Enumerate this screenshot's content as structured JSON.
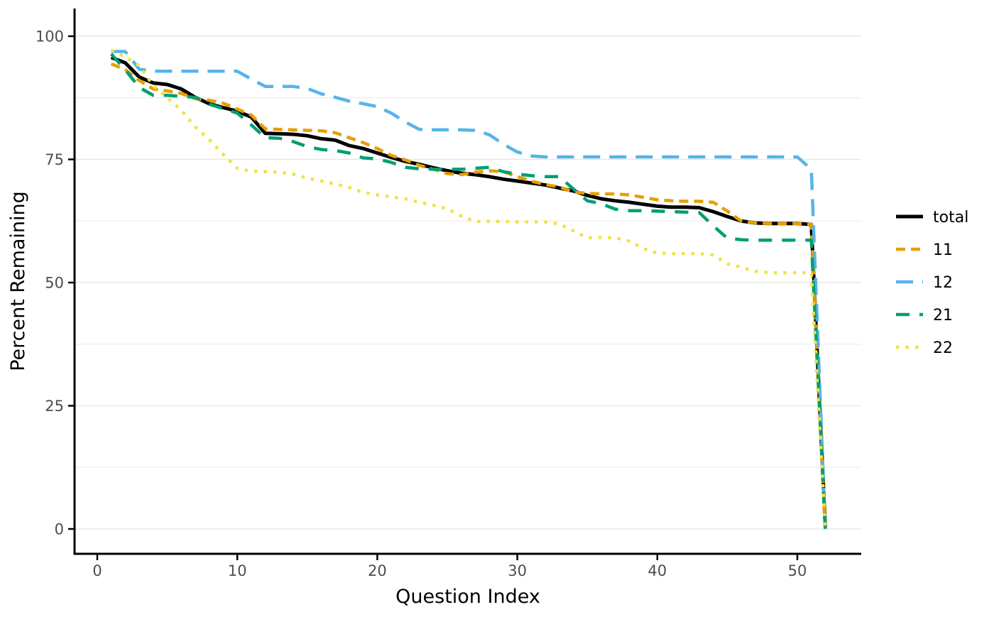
{
  "figure": {
    "background": "#ffffff"
  },
  "axes": {
    "axis_color": "#000000",
    "tick_label_color": "#4d4d4d",
    "title_color": "#000000",
    "grid_major_color": "#e7e7e7",
    "grid_minor_color": "#f0f0f0"
  },
  "legend": {
    "labels": [
      "total",
      "11",
      "12",
      "21",
      "22"
    ]
  },
  "chart_data": {
    "type": "line",
    "title": "",
    "xlabel": "Question Index",
    "ylabel": "Percent Remaining",
    "xlim": [
      0,
      54
    ],
    "ylim": [
      0,
      100
    ],
    "x_ticks": [
      0,
      10,
      20,
      30,
      40,
      50
    ],
    "y_ticks": [
      0,
      25,
      50,
      75,
      100
    ],
    "y_minor_ticks": [
      12.5,
      37.5,
      62.5,
      87.5
    ],
    "grid": "horizontal only, major and minor",
    "legend_position": "right",
    "x": [
      1,
      2,
      3,
      4,
      5,
      6,
      7,
      8,
      9,
      10,
      11,
      12,
      13,
      14,
      15,
      16,
      17,
      18,
      19,
      20,
      21,
      22,
      23,
      24,
      25,
      26,
      27,
      28,
      29,
      30,
      31,
      32,
      33,
      34,
      35,
      36,
      37,
      38,
      39,
      40,
      41,
      42,
      43,
      44,
      45,
      46,
      47,
      48,
      49,
      50,
      51,
      52
    ],
    "series": [
      {
        "name": "total",
        "color": "#000000",
        "linetype": "solid",
        "dash": [],
        "width": 5,
        "values": [
          95.7,
          94.6,
          91.7,
          90.5,
          90.2,
          89.3,
          87.6,
          86.3,
          85.5,
          84.8,
          83.6,
          80.3,
          80.2,
          80.1,
          79.8,
          79.2,
          78.9,
          77.8,
          77.2,
          76.3,
          75.4,
          74.6,
          74.0,
          73.3,
          72.7,
          72.2,
          71.9,
          71.5,
          71.0,
          70.6,
          70.2,
          69.8,
          69.2,
          68.6,
          67.7,
          67.0,
          66.6,
          66.3,
          65.9,
          65.5,
          65.3,
          65.3,
          65.2,
          64.4,
          63.4,
          62.5,
          62.1,
          62.0,
          62.0,
          62.0,
          61.8,
          0.4
        ]
      },
      {
        "name": "11",
        "color": "#E69F00",
        "linetype": "dashed",
        "dash": [
          13,
          8
        ],
        "width": 4.5,
        "values": [
          94.4,
          93.2,
          91.0,
          89.3,
          88.9,
          88.4,
          87.3,
          87.0,
          86.4,
          85.2,
          84.0,
          81.2,
          81.1,
          81.0,
          80.9,
          80.8,
          80.4,
          79.4,
          78.4,
          77.2,
          75.8,
          74.9,
          73.8,
          73.0,
          72.1,
          71.9,
          72.4,
          72.7,
          72.5,
          71.5,
          70.6,
          69.9,
          69.4,
          68.4,
          68.1,
          68.0,
          68.0,
          67.8,
          67.3,
          66.8,
          66.6,
          66.5,
          66.5,
          66.3,
          64.5,
          62.5,
          62.1,
          62.0,
          62.0,
          62.0,
          61.8,
          0
        ]
      },
      {
        "name": "12",
        "color": "#56B4E9",
        "linetype": "longdash",
        "dash": [
          24,
          13
        ],
        "width": 4.5,
        "values": [
          96.9,
          96.9,
          93.3,
          92.9,
          92.9,
          92.9,
          92.9,
          92.9,
          92.9,
          92.9,
          91.3,
          89.8,
          89.8,
          89.8,
          89.4,
          88.3,
          87.6,
          86.8,
          86.3,
          85.7,
          84.4,
          82.6,
          81.1,
          81.0,
          81.0,
          81.0,
          80.9,
          80.0,
          78.1,
          76.5,
          75.7,
          75.5,
          75.5,
          75.5,
          75.5,
          75.5,
          75.5,
          75.5,
          75.5,
          75.5,
          75.5,
          75.5,
          75.5,
          75.5,
          75.5,
          75.5,
          75.5,
          75.5,
          75.5,
          75.5,
          73.0,
          0
        ]
      },
      {
        "name": "21",
        "color": "#009E73",
        "linetype": "longdash",
        "dash": [
          19,
          14
        ],
        "width": 4.5,
        "values": [
          96.4,
          93.2,
          89.6,
          88.0,
          88.0,
          87.8,
          87.6,
          86.2,
          85.3,
          84.4,
          82.0,
          79.4,
          79.3,
          78.6,
          77.6,
          77.0,
          76.8,
          76.3,
          75.3,
          75.1,
          74.4,
          73.4,
          73.1,
          73.0,
          73.0,
          73.0,
          73.2,
          73.4,
          72.5,
          72.0,
          71.7,
          71.5,
          71.5,
          69.0,
          66.6,
          66.0,
          64.9,
          64.6,
          64.6,
          64.5,
          64.4,
          64.3,
          64.2,
          61.5,
          59.0,
          58.7,
          58.6,
          58.6,
          58.6,
          58.6,
          58.6,
          0
        ]
      },
      {
        "name": "22",
        "color": "#F0E442",
        "linetype": "dotted",
        "dash": [
          4.5,
          9
        ],
        "width": 4.5,
        "values": [
          97.2,
          95.8,
          94.0,
          90.0,
          87.5,
          85.0,
          81.6,
          79.0,
          76.0,
          73.2,
          72.6,
          72.5,
          72.4,
          72.0,
          71.2,
          70.6,
          70.0,
          69.3,
          68.3,
          67.8,
          67.4,
          67.0,
          66.3,
          65.7,
          65.0,
          63.5,
          62.4,
          62.4,
          62.4,
          62.3,
          62.3,
          62.3,
          61.9,
          60.5,
          59.1,
          59.1,
          59.1,
          58.4,
          56.9,
          56.0,
          55.9,
          55.9,
          55.9,
          55.6,
          53.8,
          53.1,
          52.3,
          52.0,
          52.0,
          52.0,
          52.0,
          0
        ]
      }
    ]
  }
}
